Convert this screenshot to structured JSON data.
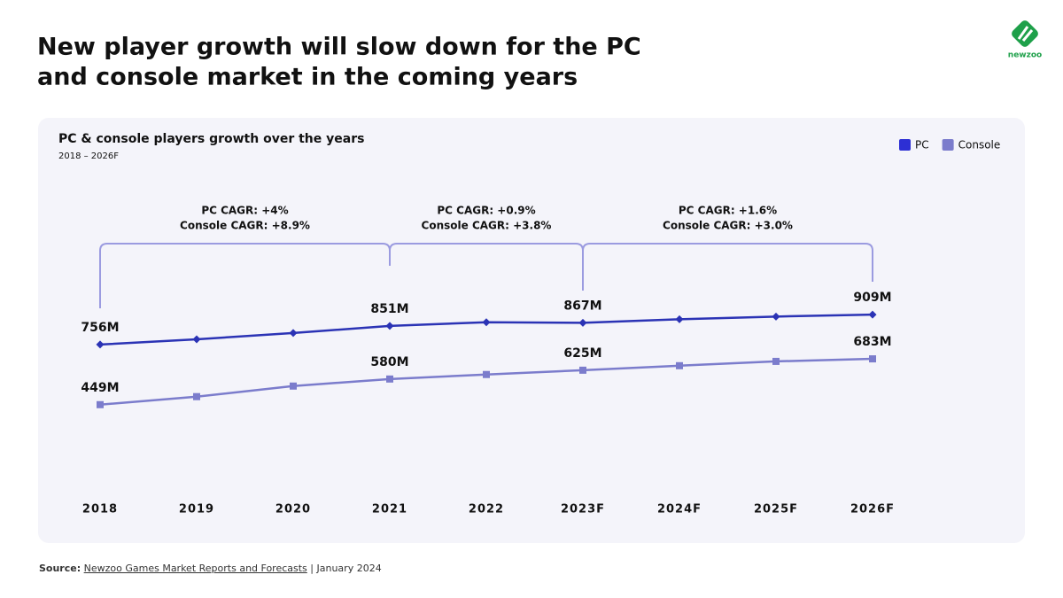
{
  "header": {
    "title_lines": [
      "New player growth will slow down for the PC",
      "and console market in the coming years"
    ],
    "logo": "newzoo"
  },
  "chart_data": {
    "type": "line",
    "title": "PC & console players growth over the years",
    "subtitle": "2018 – 2026F",
    "categories": [
      "2018",
      "2019",
      "2020",
      "2021",
      "2022",
      "2023F",
      "2024F",
      "2025F",
      "2026F"
    ],
    "series": [
      {
        "name": "PC",
        "color": "#2b33b5",
        "legend_color": "#2d2fd4",
        "marker": "diamond",
        "values": [
          756,
          783,
          815,
          851,
          870,
          867,
          885,
          899,
          909
        ],
        "value_labels": [
          "756M",
          null,
          null,
          "851M",
          null,
          "867M",
          null,
          null,
          "909M"
        ]
      },
      {
        "name": "Console",
        "color": "#7b7ccc",
        "legend_color": "#7b7ccc",
        "marker": "square",
        "values": [
          449,
          490,
          544,
          580,
          603,
          625,
          648,
          670,
          683
        ],
        "value_labels": [
          "449M",
          null,
          null,
          "580M",
          null,
          "625M",
          null,
          null,
          "683M"
        ]
      }
    ],
    "ylim": [
      0,
      1000
    ],
    "grid": false,
    "legend": "top-right",
    "annotations": [
      {
        "lines": [
          "PC CAGR: +4%",
          "Console CAGR: +8.9%"
        ]
      },
      {
        "lines": [
          "PC CAGR: +0.9%",
          "Console CAGR: +3.8%"
        ]
      },
      {
        "lines": [
          "PC CAGR: +1.6%",
          "Console CAGR: +3.0%"
        ]
      }
    ]
  },
  "footer": {
    "source_label": "Source:",
    "source_link": "Newzoo Games Market Reports and Forecasts",
    "source_rest": "| January 2024"
  }
}
